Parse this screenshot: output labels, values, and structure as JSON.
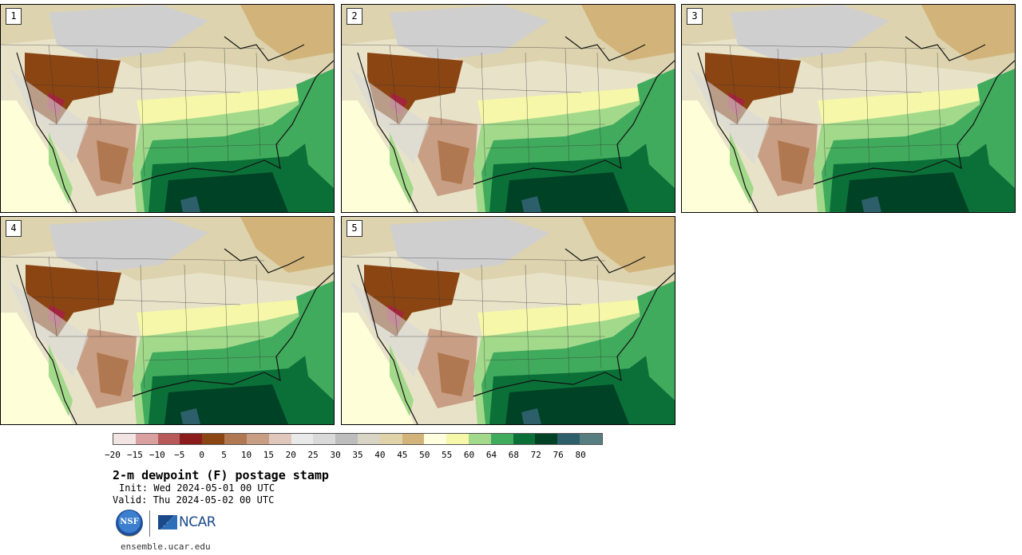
{
  "panels": [
    {
      "label": "1"
    },
    {
      "label": "2"
    },
    {
      "label": "3"
    },
    {
      "label": "4"
    },
    {
      "label": "5"
    }
  ],
  "colorbar": {
    "colors": [
      "#f3e4e4",
      "#d9a0a0",
      "#b85a5a",
      "#8c1c1c",
      "#8b4513",
      "#b07850",
      "#c89e84",
      "#dfc8bb",
      "#e9e9e9",
      "#d9d9d9",
      "#bdbdbd",
      "#d9d5c4",
      "#e0d3aa",
      "#d2b47b",
      "#ffffe0",
      "#f6f7a8",
      "#a3d98b",
      "#41ab5d",
      "#0b7038",
      "#004225",
      "#2c5f6a",
      "#567d80"
    ],
    "tick_labels": [
      "−20",
      "−15",
      "−10",
      "−5",
      "0",
      "5",
      "10",
      "15",
      "20",
      "25",
      "30",
      "35",
      "40",
      "45",
      "50",
      "55",
      "60",
      "64",
      "68",
      "72",
      "76",
      "80"
    ]
  },
  "title": "2-m dewpoint (F) postage stamp",
  "init": "Init: Wed 2024-05-01 00 UTC",
  "valid": "Valid: Thu 2024-05-02 00 UTC",
  "logos": {
    "nsf": "NSF",
    "ncar": "NCAR"
  },
  "url": "ensemble.ucar.edu"
}
